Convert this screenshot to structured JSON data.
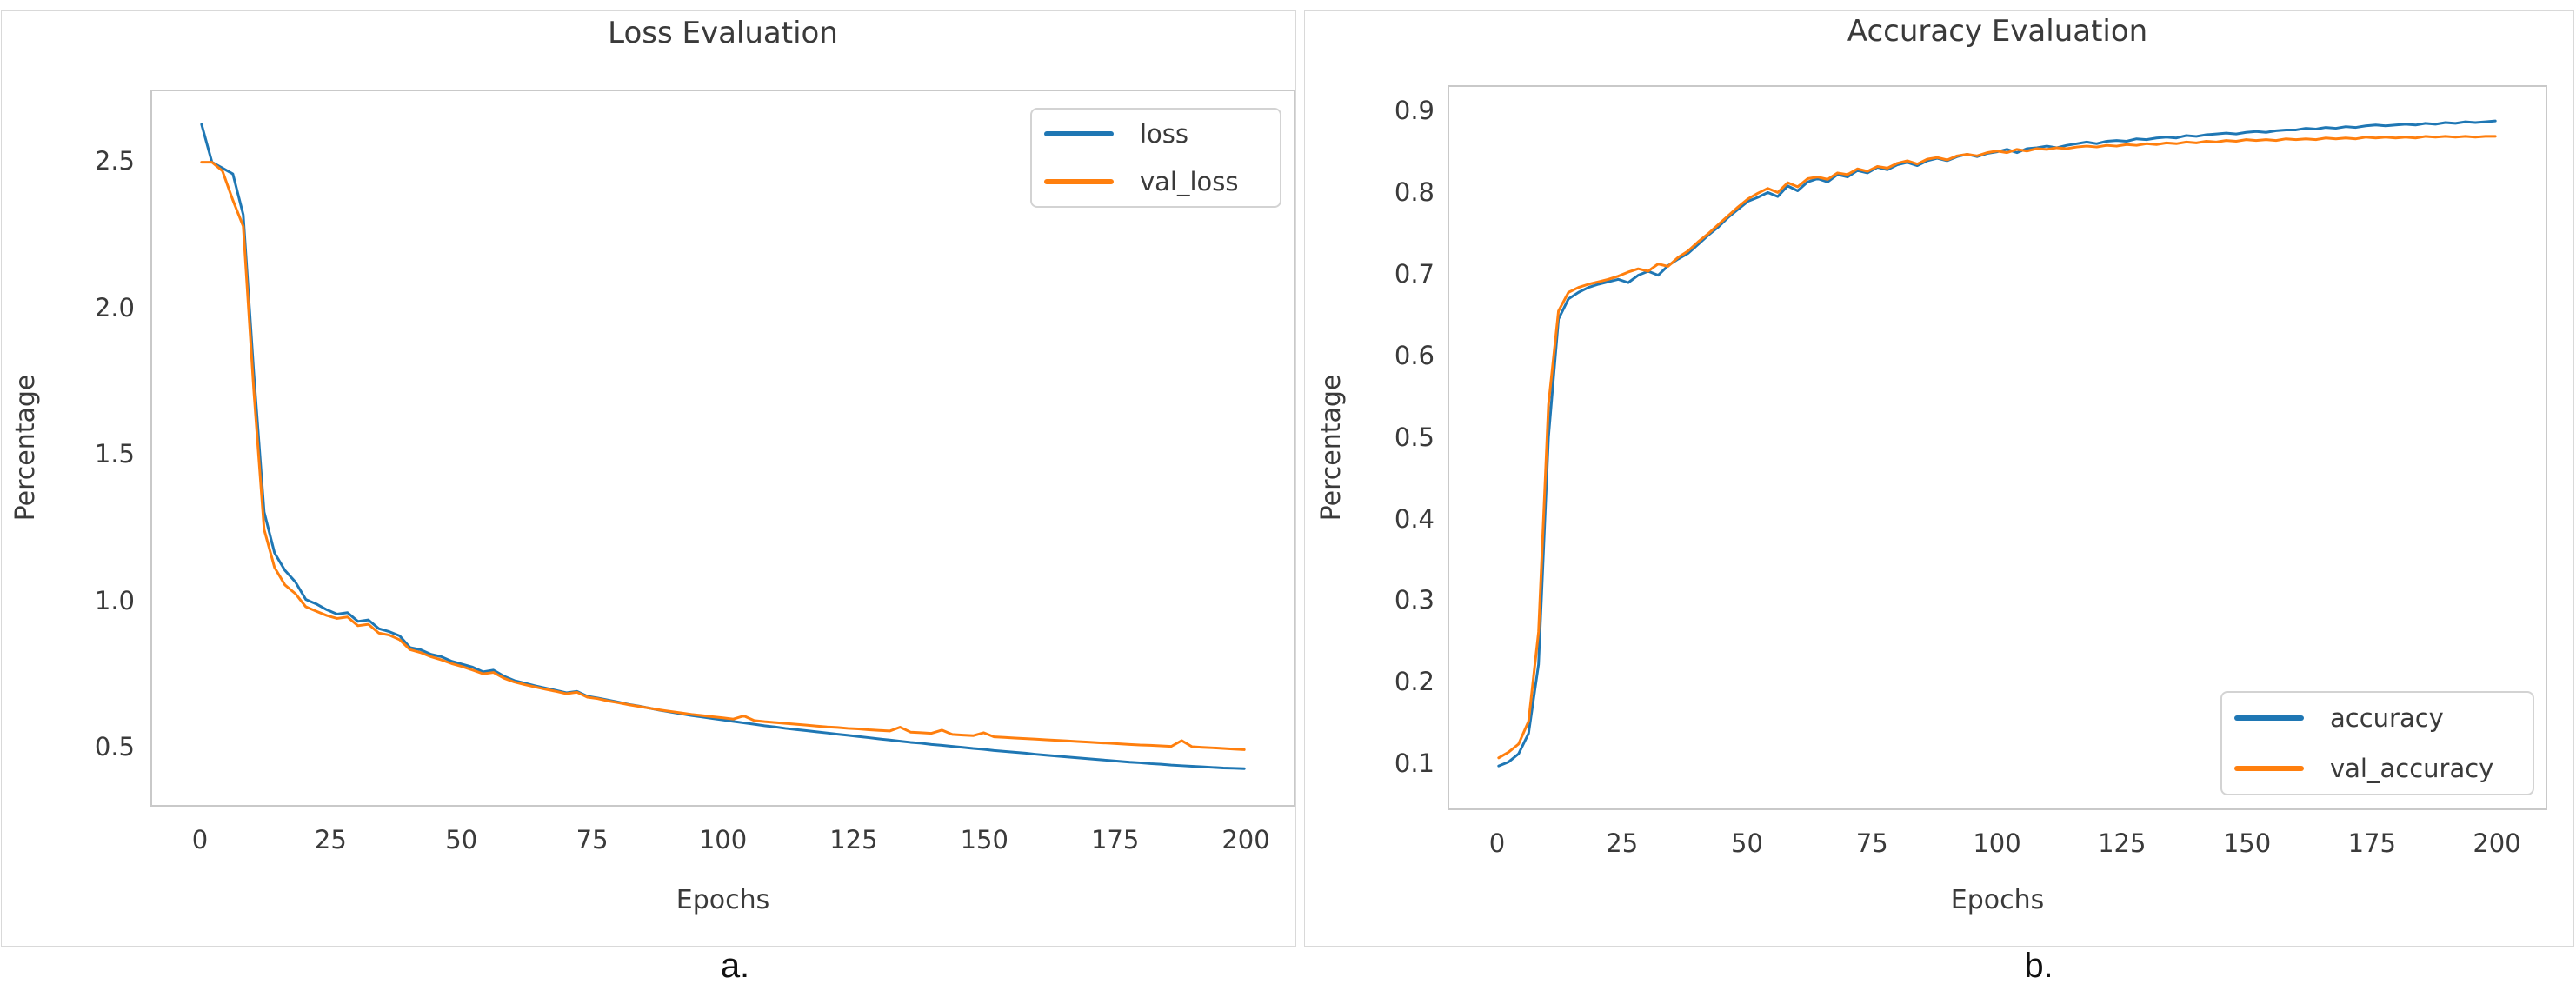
{
  "page": {
    "background": "#ffffff"
  },
  "captions": {
    "a": "a.",
    "b": "b."
  },
  "colors": {
    "loss_series": "#1f77b4",
    "val_series": "#ff7f0e",
    "axis": "#c9c9c9",
    "text": "#3a3a3a"
  },
  "chart_data": [
    {
      "type": "line",
      "title": "Loss Evaluation",
      "xlabel": "Epochs",
      "ylabel": "Percentage",
      "grid": false,
      "legend_position": "upper right",
      "xlim": [
        -9.5,
        209.5
      ],
      "ylim": [
        0.29,
        2.74
      ],
      "xticks": [
        "0",
        "25",
        "50",
        "75",
        "100",
        "125",
        "150",
        "175",
        "200"
      ],
      "yticks": [
        "2.5",
        "2.0",
        "1.5",
        "1.0",
        "0.5"
      ],
      "series": [
        {
          "name": "loss",
          "color": "#1f77b4",
          "x_start": 0,
          "x_step": 2,
          "values": [
            2.63,
            2.5,
            2.48,
            2.46,
            2.32,
            1.78,
            1.3,
            1.16,
            1.1,
            1.06,
            1.0,
            0.985,
            0.965,
            0.95,
            0.955,
            0.925,
            0.93,
            0.9,
            0.89,
            0.875,
            0.835,
            0.828,
            0.812,
            0.804,
            0.788,
            0.778,
            0.768,
            0.752,
            0.758,
            0.737,
            0.722,
            0.713,
            0.704,
            0.696,
            0.688,
            0.68,
            0.685,
            0.668,
            0.662,
            0.655,
            0.648,
            0.64,
            0.634,
            0.627,
            0.62,
            0.614,
            0.608,
            0.602,
            0.597,
            0.592,
            0.587,
            0.582,
            0.577,
            0.572,
            0.567,
            0.563,
            0.558,
            0.554,
            0.55,
            0.546,
            0.542,
            0.538,
            0.534,
            0.53,
            0.526,
            0.522,
            0.518,
            0.514,
            0.51,
            0.507,
            0.503,
            0.5,
            0.496,
            0.493,
            0.489,
            0.486,
            0.482,
            0.479,
            0.476,
            0.473,
            0.469,
            0.466,
            0.463,
            0.46,
            0.457,
            0.454,
            0.451,
            0.448,
            0.445,
            0.442,
            0.44,
            0.437,
            0.435,
            0.432,
            0.43,
            0.428,
            0.426,
            0.424,
            0.422,
            0.421,
            0.42
          ]
        },
        {
          "name": "val_loss",
          "color": "#ff7f0e",
          "x_start": 0,
          "x_step": 2,
          "values": [
            2.5,
            2.5,
            2.47,
            2.37,
            2.28,
            1.72,
            1.24,
            1.11,
            1.05,
            1.02,
            0.975,
            0.96,
            0.945,
            0.935,
            0.94,
            0.91,
            0.915,
            0.885,
            0.878,
            0.862,
            0.828,
            0.818,
            0.804,
            0.793,
            0.78,
            0.77,
            0.758,
            0.745,
            0.75,
            0.73,
            0.717,
            0.708,
            0.7,
            0.692,
            0.685,
            0.677,
            0.682,
            0.665,
            0.66,
            0.652,
            0.646,
            0.639,
            0.633,
            0.627,
            0.621,
            0.616,
            0.611,
            0.606,
            0.602,
            0.598,
            0.594,
            0.59,
            0.601,
            0.585,
            0.581,
            0.578,
            0.575,
            0.572,
            0.569,
            0.566,
            0.563,
            0.561,
            0.558,
            0.556,
            0.553,
            0.551,
            0.549,
            0.562,
            0.545,
            0.543,
            0.541,
            0.552,
            0.537,
            0.535,
            0.533,
            0.543,
            0.529,
            0.527,
            0.525,
            0.523,
            0.521,
            0.519,
            0.517,
            0.515,
            0.513,
            0.511,
            0.509,
            0.507,
            0.505,
            0.503,
            0.501,
            0.5,
            0.498,
            0.496,
            0.516,
            0.495,
            0.493,
            0.491,
            0.489,
            0.487,
            0.485
          ]
        }
      ]
    },
    {
      "type": "line",
      "title": "Accuracy Evaluation",
      "xlabel": "Epochs",
      "ylabel": "Percentage",
      "grid": false,
      "legend_position": "lower right",
      "xlim": [
        -10,
        210
      ],
      "ylim": [
        0.04,
        0.93
      ],
      "xticks": [
        "0",
        "25",
        "50",
        "75",
        "100",
        "125",
        "150",
        "175",
        "200"
      ],
      "yticks": [
        "0.9",
        "0.8",
        "0.7",
        "0.6",
        "0.5",
        "0.4",
        "0.3",
        "0.2",
        "0.1"
      ],
      "series": [
        {
          "name": "accuracy",
          "color": "#1f77b4",
          "x_start": 0,
          "x_step": 2,
          "values": [
            0.095,
            0.1,
            0.11,
            0.135,
            0.22,
            0.5,
            0.645,
            0.67,
            0.678,
            0.684,
            0.688,
            0.691,
            0.694,
            0.69,
            0.699,
            0.704,
            0.699,
            0.711,
            0.719,
            0.726,
            0.737,
            0.748,
            0.758,
            0.77,
            0.78,
            0.79,
            0.795,
            0.801,
            0.796,
            0.809,
            0.803,
            0.814,
            0.818,
            0.814,
            0.823,
            0.82,
            0.828,
            0.825,
            0.832,
            0.829,
            0.835,
            0.838,
            0.834,
            0.84,
            0.843,
            0.84,
            0.845,
            0.848,
            0.845,
            0.849,
            0.851,
            0.854,
            0.85,
            0.855,
            0.856,
            0.858,
            0.856,
            0.859,
            0.861,
            0.863,
            0.861,
            0.864,
            0.865,
            0.864,
            0.867,
            0.866,
            0.868,
            0.869,
            0.868,
            0.871,
            0.87,
            0.872,
            0.873,
            0.874,
            0.873,
            0.875,
            0.876,
            0.875,
            0.877,
            0.878,
            0.878,
            0.88,
            0.879,
            0.881,
            0.88,
            0.882,
            0.881,
            0.883,
            0.884,
            0.883,
            0.884,
            0.885,
            0.884,
            0.886,
            0.885,
            0.887,
            0.886,
            0.888,
            0.887,
            0.888,
            0.889
          ]
        },
        {
          "name": "val_accuracy",
          "color": "#ff7f0e",
          "x_start": 0,
          "x_step": 2,
          "values": [
            0.105,
            0.112,
            0.122,
            0.15,
            0.26,
            0.54,
            0.655,
            0.678,
            0.684,
            0.688,
            0.691,
            0.694,
            0.698,
            0.703,
            0.707,
            0.704,
            0.713,
            0.71,
            0.721,
            0.729,
            0.74,
            0.75,
            0.761,
            0.772,
            0.783,
            0.793,
            0.8,
            0.806,
            0.801,
            0.813,
            0.808,
            0.818,
            0.82,
            0.817,
            0.825,
            0.823,
            0.83,
            0.827,
            0.833,
            0.831,
            0.837,
            0.84,
            0.836,
            0.842,
            0.844,
            0.841,
            0.846,
            0.848,
            0.846,
            0.85,
            0.852,
            0.85,
            0.854,
            0.852,
            0.855,
            0.854,
            0.856,
            0.855,
            0.857,
            0.858,
            0.857,
            0.859,
            0.858,
            0.86,
            0.859,
            0.861,
            0.86,
            0.862,
            0.861,
            0.863,
            0.862,
            0.864,
            0.863,
            0.865,
            0.864,
            0.866,
            0.865,
            0.866,
            0.865,
            0.867,
            0.866,
            0.867,
            0.866,
            0.868,
            0.867,
            0.868,
            0.867,
            0.869,
            0.868,
            0.869,
            0.868,
            0.869,
            0.868,
            0.87,
            0.869,
            0.87,
            0.869,
            0.87,
            0.869,
            0.87,
            0.87
          ]
        }
      ]
    }
  ]
}
